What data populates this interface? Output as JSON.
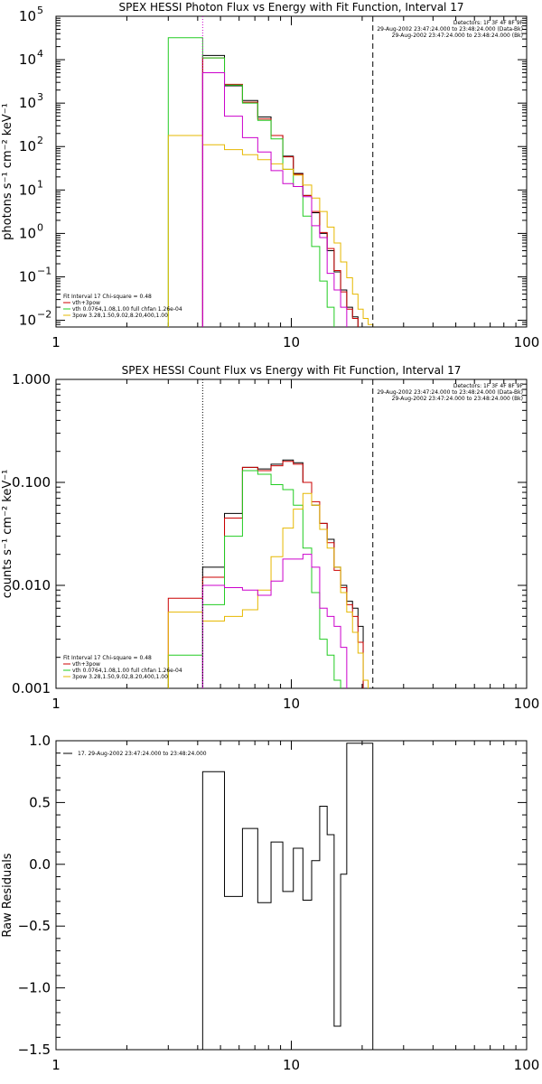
{
  "colors": {
    "axis": "#000000",
    "data": "#000000",
    "total_fit": "#cc0000",
    "thermal": "#22cc22",
    "power_law": "#e6b800",
    "background": "#cc00cc",
    "range_marker": "#000000"
  },
  "chart_data": [
    {
      "type": "line",
      "step_histogram": true,
      "title": "SPEX HESSI Photon Flux vs Energy with Fit Function, Interval 17",
      "ylabel": "photons s⁻¹ cm⁻² keV⁻¹",
      "xlabel": "",
      "xscale": "log",
      "yscale": "log",
      "xlim": [
        1,
        100
      ],
      "ylim": [
        0.007,
        100000
      ],
      "xticks": [
        {
          "value": 1,
          "label": "1"
        },
        {
          "value": 10,
          "label": "10"
        },
        {
          "value": 100,
          "label": "100"
        }
      ],
      "yticks": [
        {
          "value": 0.01,
          "base": "10",
          "exp": "−2"
        },
        {
          "value": 0.1,
          "base": "10",
          "exp": "−1"
        },
        {
          "value": 1,
          "base": "10",
          "exp": "0"
        },
        {
          "value": 10,
          "base": "10",
          "exp": "1"
        },
        {
          "value": 100,
          "base": "10",
          "exp": "2"
        },
        {
          "value": 1000,
          "base": "10",
          "exp": "3"
        },
        {
          "value": 10000,
          "base": "10",
          "exp": "4"
        },
        {
          "value": 100000,
          "base": "10",
          "exp": "5"
        }
      ],
      "edges": [
        3.0,
        4.2,
        5.2,
        6.2,
        7.2,
        8.2,
        9.2,
        10.2,
        11.2,
        12.2,
        13.2,
        14.2,
        15.2,
        16.2,
        17.2,
        18.2,
        19.2,
        20.2,
        21.2,
        22.2,
        24.2
      ],
      "vlines": [
        {
          "x": 4.2,
          "style": "dotted",
          "color": "#cc00cc"
        },
        {
          "x": 22.2,
          "style": "dashed",
          "color": "#000000"
        }
      ],
      "info_lines": [
        "Detectors: 1F 3F 4F 8F 9F",
        "29-Aug-2002 23:47:24.000 to 23:48:24.000 (Data-Bk)",
        "29-Aug-2002 23:47:24.000 to 23:48:24.000 (Bk)"
      ],
      "legend_title": "Fit Interval 17   Chi-square = 0.48",
      "legend_position": "bottom-left",
      "series": [
        {
          "name": "",
          "color": "#000000",
          "values": [
            null,
            12500,
            2500,
            1150,
            480,
            180,
            60,
            24,
            7.5,
            3.0,
            1.0,
            0.4,
            0.13,
            0.05,
            0.02,
            0.012,
            0.0055,
            null,
            null,
            null
          ]
        },
        {
          "name": "vth+3pow",
          "color": "#cc0000",
          "values": [
            null,
            11000,
            2700,
            1050,
            430,
            180,
            58,
            23,
            7.5,
            3.2,
            1.05,
            0.45,
            0.14,
            0.045,
            0.018,
            0.011,
            0.0045,
            null,
            null,
            null
          ]
        },
        {
          "name": "vth 0.0764,1.08,1.00  full chfan 1.26e-04",
          "color": "#22cc22",
          "values": [
            32000,
            11000,
            2600,
            1000,
            400,
            150,
            30,
            12,
            2.5,
            0.5,
            0.08,
            0.02,
            null,
            null,
            null,
            null,
            null,
            null,
            null,
            null
          ]
        },
        {
          "name": "3pow 3.28,1.50,9.02,8.20,400,1.00",
          "color": "#e6b800",
          "values": [
            180,
            110,
            85,
            65,
            50,
            40,
            30,
            22,
            13,
            6.5,
            3.2,
            1.4,
            0.6,
            0.22,
            0.095,
            0.04,
            0.018,
            0.011,
            0.008,
            null
          ]
        },
        {
          "name": "",
          "color": "#cc00cc",
          "values": [
            null,
            5000,
            500,
            160,
            75,
            28,
            14,
            12,
            7.0,
            1.5,
            0.8,
            0.12,
            0.05,
            0.02,
            null,
            null,
            null,
            null,
            null,
            null
          ]
        }
      ]
    },
    {
      "type": "line",
      "step_histogram": true,
      "title": "SPEX HESSI Count Flux vs Energy with Fit Function, Interval 17",
      "ylabel": "counts s⁻¹ cm⁻² keV⁻¹",
      "xlabel": "",
      "xscale": "log",
      "yscale": "log",
      "xlim": [
        1,
        100
      ],
      "ylim": [
        0.001,
        1.0
      ],
      "xticks": [
        {
          "value": 1,
          "label": "1"
        },
        {
          "value": 10,
          "label": "10"
        },
        {
          "value": 100,
          "label": "100"
        }
      ],
      "yticks": [
        {
          "value": 0.001,
          "label": "0.001"
        },
        {
          "value": 0.01,
          "label": "0.010"
        },
        {
          "value": 0.1,
          "label": "0.100"
        },
        {
          "value": 1.0,
          "label": "1.000"
        }
      ],
      "edges": [
        3.0,
        4.2,
        5.2,
        6.2,
        7.2,
        8.2,
        9.2,
        10.2,
        11.2,
        12.2,
        13.2,
        14.2,
        15.2,
        16.2,
        17.2,
        18.2,
        19.2,
        20.2,
        21.2,
        22.2,
        24.2
      ],
      "vlines": [
        {
          "x": 4.2,
          "style": "dotted",
          "color": "#000000"
        },
        {
          "x": 22.2,
          "style": "dashed",
          "color": "#000000"
        }
      ],
      "info_lines": [
        "Detectors: 1F 3F 4F 8F 9F",
        "29-Aug-2002 23:47:24.000 to 23:48:24.000 (Data-Bk)",
        "29-Aug-2002 23:47:24.000 to 23:48:24.000 (Bk)"
      ],
      "legend_title": "Fit Interval 17   Chi-square = 0.48",
      "legend_position": "bottom-left",
      "series": [
        {
          "name": "",
          "color": "#000000",
          "values": [
            null,
            0.015,
            0.05,
            0.14,
            0.135,
            0.15,
            0.165,
            0.155,
            0.1,
            0.06,
            0.04,
            0.028,
            0.015,
            0.01,
            0.007,
            0.006,
            0.004,
            null,
            null,
            null
          ]
        },
        {
          "name": "vth+3pow",
          "color": "#cc0000",
          "values": [
            0.0075,
            0.012,
            0.045,
            0.14,
            0.13,
            0.145,
            0.16,
            0.15,
            0.1,
            0.065,
            0.04,
            0.026,
            0.014,
            0.0095,
            0.0065,
            0.005,
            0.0028,
            null,
            null,
            null
          ]
        },
        {
          "name": "vth 0.0764,1.08,1.00  full chfan 1.26e-04",
          "color": "#22cc22",
          "values": [
            0.0021,
            0.0065,
            0.03,
            0.13,
            0.12,
            0.095,
            0.085,
            0.06,
            0.023,
            0.0085,
            0.003,
            0.0021,
            0.0012,
            null,
            null,
            null,
            null,
            null,
            null,
            null
          ]
        },
        {
          "name": "3pow 3.28,1.50,9.02,8.20,400,1.00",
          "color": "#e6b800",
          "values": [
            0.0055,
            0.0045,
            0.005,
            0.0058,
            0.009,
            0.019,
            0.036,
            0.055,
            0.078,
            0.06,
            0.035,
            0.023,
            0.015,
            0.0085,
            0.0055,
            0.0035,
            0.0022,
            0.0012,
            null,
            null
          ]
        },
        {
          "name": "",
          "color": "#cc00cc",
          "values": [
            null,
            0.01,
            0.0095,
            0.009,
            0.008,
            0.011,
            0.018,
            0.018,
            0.02,
            0.015,
            0.006,
            0.005,
            0.004,
            0.0025,
            null,
            null,
            null,
            null,
            null,
            null
          ]
        }
      ]
    },
    {
      "type": "line",
      "step_histogram": true,
      "title": "",
      "ylabel": "Raw Residuals",
      "xlabel": "",
      "xscale": "log",
      "yscale": "linear",
      "xlim": [
        1,
        100
      ],
      "ylim": [
        -1.5,
        1.0
      ],
      "xticks": [
        {
          "value": 1,
          "label": "1"
        },
        {
          "value": 10,
          "label": "10"
        },
        {
          "value": 100,
          "label": "100"
        }
      ],
      "yticks": [
        {
          "value": 1.0,
          "label": "1.0"
        },
        {
          "value": 0.5,
          "label": "0.5"
        },
        {
          "value": 0.0,
          "label": "0.0"
        },
        {
          "value": -0.5,
          "label": "−0.5"
        },
        {
          "value": -1.0,
          "label": "−1.0"
        },
        {
          "value": -1.5,
          "label": "−1.5"
        }
      ],
      "edges": [
        4.2,
        5.2,
        6.2,
        7.2,
        8.2,
        9.2,
        10.2,
        11.2,
        12.2,
        13.2,
        14.2,
        15.2,
        16.2,
        17.2,
        18.2,
        19.2,
        20.2,
        21.2,
        22.2
      ],
      "vlines": [],
      "info_lines": [],
      "legend_title": "",
      "legend_position": "top-left",
      "series": [
        {
          "name": "17. 29-Aug-2002 23:47:24.000 to 23:48:24.000",
          "color": "#000000",
          "values": [
            0.75,
            -0.26,
            0.29,
            -0.31,
            0.18,
            -0.22,
            0.13,
            -0.29,
            0.03,
            0.47,
            0.24,
            -1.31,
            -0.08,
            0.98,
            0.98,
            0.98,
            0.98,
            0.98
          ]
        }
      ]
    }
  ]
}
